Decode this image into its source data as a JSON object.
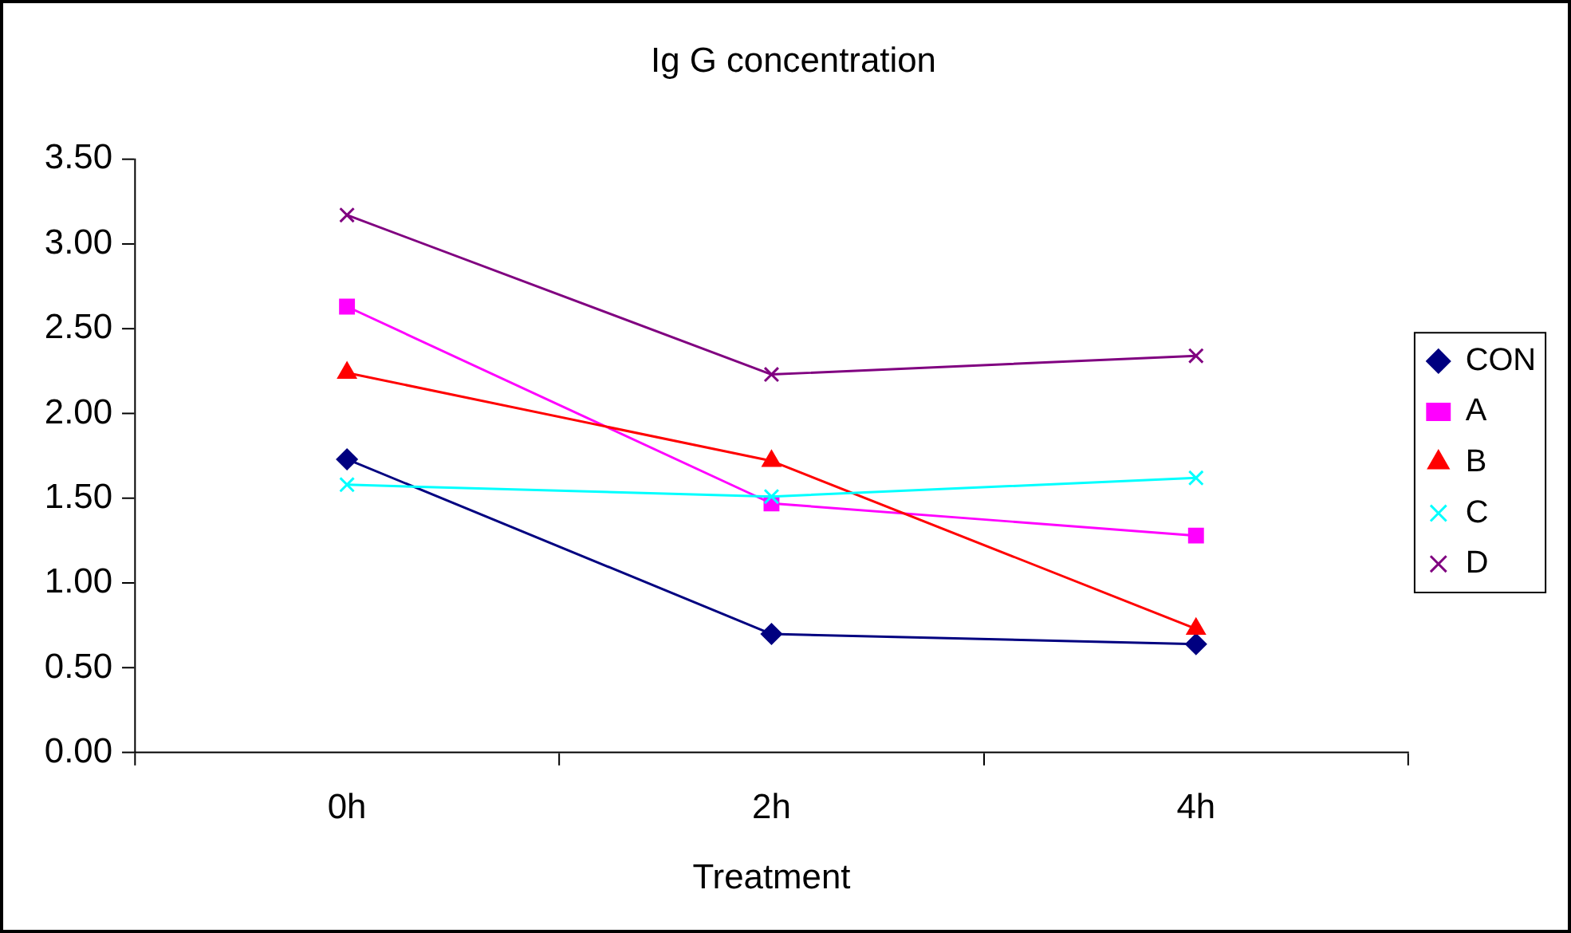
{
  "chart_data": {
    "type": "line",
    "title": "Ig G concentration",
    "xlabel": "Treatment",
    "categories": [
      "0h",
      "2h",
      "4h"
    ],
    "series": [
      {
        "name": "CON",
        "color": "#000080",
        "marker": "diamond",
        "values": [
          1.73,
          0.7,
          0.64
        ]
      },
      {
        "name": "A",
        "color": "#ff00ff",
        "marker": "square",
        "values": [
          2.63,
          1.47,
          1.28
        ]
      },
      {
        "name": "B",
        "color": "#ff0000",
        "marker": "triangle",
        "values": [
          2.24,
          1.72,
          0.73
        ]
      },
      {
        "name": "C",
        "color": "#00ffff",
        "marker": "cross",
        "values": [
          1.58,
          1.51,
          1.62
        ]
      },
      {
        "name": "D",
        "color": "#800080",
        "marker": "cross",
        "values": [
          3.17,
          2.23,
          2.34
        ]
      }
    ],
    "ylim": [
      0,
      3.5
    ],
    "yticks": [
      {
        "value": 0,
        "label": "0.00"
      },
      {
        "value": 0.5,
        "label": "0.50"
      },
      {
        "value": 1,
        "label": "1.00"
      },
      {
        "value": 1.5,
        "label": "1.50"
      },
      {
        "value": 2,
        "label": "2.00"
      },
      {
        "value": 2.5,
        "label": "2.50"
      },
      {
        "value": 3,
        "label": "3.00"
      },
      {
        "value": 3.5,
        "label": "3.50"
      }
    ],
    "grid": false,
    "legend": "right",
    "line_style": "solid"
  }
}
